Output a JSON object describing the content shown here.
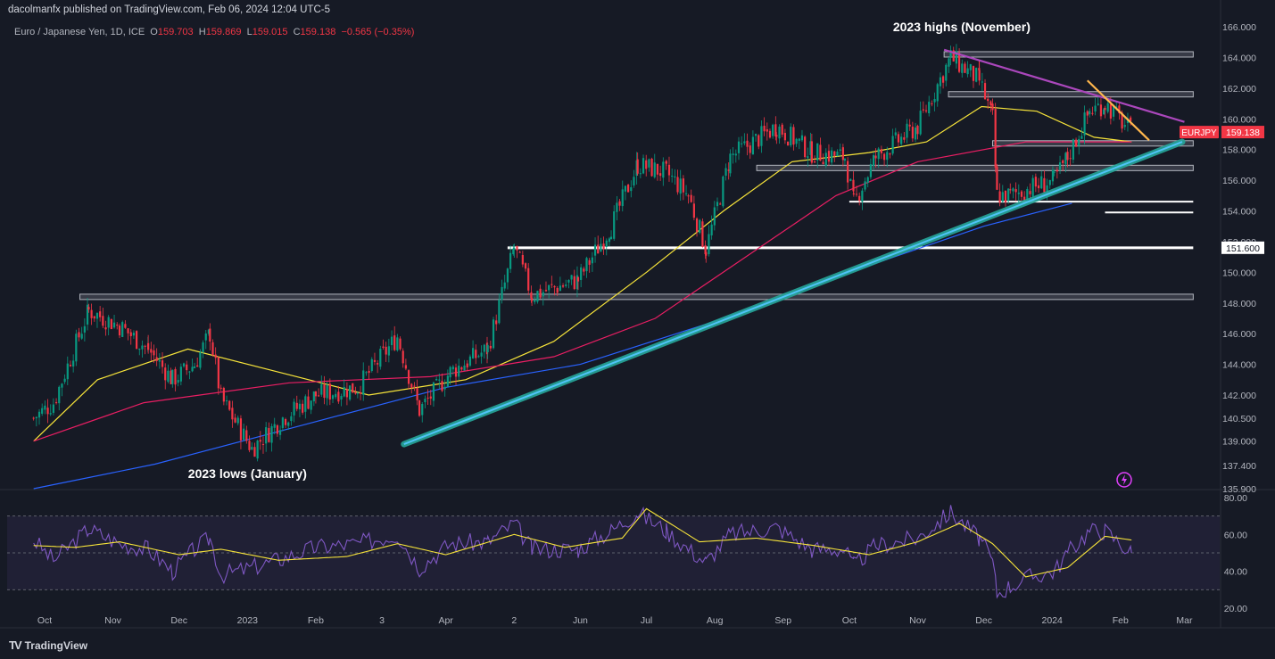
{
  "header": {
    "published_text": "dacolmanfx published on TradingView.com, Feb 06, 2024 12:04 UTC-5"
  },
  "legend": {
    "symbol_text": "Euro / Japanese Yen, 1D, ICE",
    "open_label": "O",
    "open": "159.703",
    "high_label": "H",
    "high": "159.869",
    "low_label": "L",
    "low": "159.015",
    "close_label": "C",
    "close": "159.138",
    "change": "−0.565 (−0.35%)"
  },
  "brand": {
    "logo": "TV",
    "name": "TradingView"
  },
  "colors": {
    "background": "#161a25",
    "up_candle": "#089981",
    "down_candle": "#f23645",
    "sma50": "#f7e43a",
    "sma100": "#e91e63",
    "sma200": "#2962ff",
    "rsi": "#7e57c2",
    "rsi_ma": "#f7e43a",
    "trendline_lower": "#26a69a",
    "trendline_upper": "#ab47bc",
    "trendline_short": "#ffb74d",
    "price_label": "#f23645"
  },
  "chart_data": {
    "type": "candlestick",
    "symbol": "EURJPY",
    "timeframe": "1D",
    "ylim": [
      135.9,
      166.0
    ],
    "y_ticks": [
      166.0,
      164.0,
      162.0,
      160.0,
      158.0,
      156.0,
      154.0,
      152.0,
      150.0,
      148.0,
      146.0,
      144.0,
      142.0,
      140.5,
      139.0,
      137.4,
      135.9
    ],
    "y_tick_labels": [
      "166.000",
      "164.000",
      "162.000",
      "160.000",
      "158.000",
      "156.000",
      "154.000",
      "152.000",
      "150.000",
      "148.000",
      "146.000",
      "144.000",
      "142.000",
      "140.500",
      "139.000",
      "137.400",
      "135.900"
    ],
    "x_tick_labels": [
      "Oct",
      "Nov",
      "Dec",
      "2023",
      "Feb",
      "3",
      "Apr",
      "2",
      "Jun",
      "Jul",
      "Aug",
      "Sep",
      "Oct",
      "Nov",
      "Dec",
      "2024",
      "Feb",
      "Mar"
    ],
    "x_tick_dates": [
      "2022-10-01",
      "2022-11-01",
      "2022-12-01",
      "2023-01-01",
      "2023-02-01",
      "2023-03-03",
      "2023-04-01",
      "2023-05-02",
      "2023-06-01",
      "2023-07-01",
      "2023-08-01",
      "2023-09-01",
      "2023-10-01",
      "2023-11-01",
      "2023-12-01",
      "2024-01-01",
      "2024-02-01",
      "2024-03-01"
    ],
    "price_path": [
      [
        "2022-09-26",
        140.5
      ],
      [
        "2022-10-05",
        141.5
      ],
      [
        "2022-10-21",
        147.5
      ],
      [
        "2022-11-04",
        146.5
      ],
      [
        "2022-11-17",
        145.0
      ],
      [
        "2022-11-28",
        143.0
      ],
      [
        "2022-12-08",
        144.0
      ],
      [
        "2022-12-15",
        146.0
      ],
      [
        "2022-12-20",
        141.8
      ],
      [
        "2023-01-03",
        138.5
      ],
      [
        "2023-01-17",
        140.5
      ],
      [
        "2023-02-01",
        142.0
      ],
      [
        "2023-02-20",
        142.5
      ],
      [
        "2023-03-10",
        145.8
      ],
      [
        "2023-03-20",
        141.0
      ],
      [
        "2023-04-03",
        143.5
      ],
      [
        "2023-04-20",
        145.0
      ],
      [
        "2023-05-02",
        151.6
      ],
      [
        "2023-05-10",
        148.5
      ],
      [
        "2023-05-31",
        149.5
      ],
      [
        "2023-06-15",
        153.0
      ],
      [
        "2023-06-27",
        157.0
      ],
      [
        "2023-07-10",
        156.5
      ],
      [
        "2023-07-20",
        155.0
      ],
      [
        "2023-07-28",
        151.5
      ],
      [
        "2023-08-08",
        157.5
      ],
      [
        "2023-08-29",
        159.5
      ],
      [
        "2023-09-14",
        157.8
      ],
      [
        "2023-09-29",
        157.5
      ],
      [
        "2023-10-03",
        154.5
      ],
      [
        "2023-10-13",
        157.5
      ],
      [
        "2023-11-01",
        159.5
      ],
      [
        "2023-11-16",
        164.0
      ],
      [
        "2023-11-29",
        162.5
      ],
      [
        "2023-12-05",
        160.0
      ],
      [
        "2023-12-07",
        155.0
      ],
      [
        "2023-12-13",
        155.0
      ],
      [
        "2023-12-22",
        155.5
      ],
      [
        "2024-01-02",
        156.0
      ],
      [
        "2024-01-08",
        157.5
      ],
      [
        "2024-01-18",
        160.5
      ],
      [
        "2024-01-25",
        161.0
      ],
      [
        "2024-02-06",
        159.138
      ]
    ],
    "lines": [
      {
        "name": "SMA 50",
        "color": "#f7e43a",
        "points": [
          [
            "2022-09-26",
            139.0
          ],
          [
            "2022-10-25",
            143.0
          ],
          [
            "2022-12-05",
            145.0
          ],
          [
            "2023-01-15",
            143.5
          ],
          [
            "2023-02-25",
            142.0
          ],
          [
            "2023-04-10",
            143.0
          ],
          [
            "2023-05-20",
            145.5
          ],
          [
            "2023-07-01",
            150.0
          ],
          [
            "2023-08-05",
            154.0
          ],
          [
            "2023-09-05",
            157.2
          ],
          [
            "2023-10-10",
            157.8
          ],
          [
            "2023-11-05",
            158.5
          ],
          [
            "2023-11-30",
            160.8
          ],
          [
            "2023-12-25",
            160.5
          ],
          [
            "2024-01-20",
            158.8
          ],
          [
            "2024-02-06",
            158.5
          ]
        ]
      },
      {
        "name": "SMA 100",
        "color": "#e91e63",
        "points": [
          [
            "2022-09-26",
            139.0
          ],
          [
            "2022-11-15",
            141.5
          ],
          [
            "2023-01-20",
            142.8
          ],
          [
            "2023-03-25",
            143.2
          ],
          [
            "2023-05-20",
            144.5
          ],
          [
            "2023-07-05",
            147.0
          ],
          [
            "2023-08-15",
            151.0
          ],
          [
            "2023-09-25",
            155.0
          ],
          [
            "2023-11-01",
            157.2
          ],
          [
            "2023-12-20",
            158.5
          ],
          [
            "2024-02-06",
            158.5
          ]
        ]
      },
      {
        "name": "SMA 200",
        "color": "#2962ff",
        "points": [
          [
            "2022-09-26",
            135.9
          ],
          [
            "2022-11-20",
            137.5
          ],
          [
            "2023-01-25",
            140.0
          ],
          [
            "2023-04-01",
            142.5
          ],
          [
            "2023-06-01",
            144.0
          ],
          [
            "2023-08-01",
            146.8
          ],
          [
            "2023-10-01",
            150.0
          ],
          [
            "2023-12-01",
            153.0
          ],
          [
            "2024-01-10",
            154.5
          ]
        ]
      }
    ],
    "trendlines": [
      {
        "type": "support",
        "color": "#26a69a",
        "points": [
          [
            "2023-03-13",
            138.8
          ],
          [
            "2024-02-29",
            158.5
          ]
        ]
      },
      {
        "type": "resistance",
        "color": "#ab47bc",
        "points": [
          [
            "2023-11-13",
            164.5
          ],
          [
            "2024-03-01",
            159.8
          ]
        ]
      },
      {
        "type": "resistance_short",
        "color": "#ffb74d",
        "points": [
          [
            "2024-01-17",
            162.5
          ],
          [
            "2024-02-14",
            158.6
          ]
        ]
      }
    ],
    "horizontal_levels": [
      {
        "price": 164.2,
        "start": "2023-11-13",
        "end": "2024-03-05",
        "style": "gray"
      },
      {
        "price": 161.6,
        "start": "2023-11-15",
        "end": "2024-03-05",
        "style": "gray"
      },
      {
        "price": 158.4,
        "start": "2023-12-05",
        "end": "2024-03-05",
        "style": "gray"
      },
      {
        "price": 156.8,
        "start": "2023-08-20",
        "end": "2024-03-05",
        "style": "gray"
      },
      {
        "price": 154.6,
        "start": "2023-10-01",
        "end": "2024-03-05",
        "style": "white"
      },
      {
        "price": 153.9,
        "start": "2024-01-25",
        "end": "2024-03-05",
        "style": "white"
      },
      {
        "price": 151.6,
        "start": "2023-04-29",
        "end": "2024-03-05",
        "style": "white",
        "label": "151.600"
      },
      {
        "price": 148.4,
        "start": "2022-10-17",
        "end": "2024-03-05",
        "style": "gray"
      }
    ],
    "annotations": [
      {
        "text": "2023 highs (November)",
        "date": "2023-11-21",
        "price": 165.7
      },
      {
        "text": "2023 lows (January)",
        "date": "2023-01-01",
        "price": 136.6
      }
    ],
    "last_price": {
      "symbol": "EURJPY",
      "value": "159.138",
      "price": 159.138
    },
    "rsi": {
      "ylim": [
        20,
        80
      ],
      "y_ticks": [
        80,
        60,
        40,
        20
      ],
      "y_tick_labels": [
        "80.00",
        "60.00",
        "40.00",
        "20.00"
      ],
      "bands": [
        30,
        50,
        70
      ],
      "rsi_points": [
        [
          "2022-09-26",
          57
        ],
        [
          "2022-10-05",
          46
        ],
        [
          "2022-10-21",
          63
        ],
        [
          "2022-11-04",
          55
        ],
        [
          "2022-11-17",
          52
        ],
        [
          "2022-11-28",
          40
        ],
        [
          "2022-12-08",
          52
        ],
        [
          "2022-12-15",
          58
        ],
        [
          "2022-12-20",
          38
        ],
        [
          "2023-01-03",
          42
        ],
        [
          "2023-01-17",
          47
        ],
        [
          "2023-02-01",
          53
        ],
        [
          "2023-02-20",
          55
        ],
        [
          "2023-03-10",
          60
        ],
        [
          "2023-03-20",
          42
        ],
        [
          "2023-04-03",
          55
        ],
        [
          "2023-04-20",
          56
        ],
        [
          "2023-05-02",
          66
        ],
        [
          "2023-05-10",
          52
        ],
        [
          "2023-05-31",
          52
        ],
        [
          "2023-06-15",
          62
        ],
        [
          "2023-06-27",
          72
        ],
        [
          "2023-07-10",
          62
        ],
        [
          "2023-07-20",
          52
        ],
        [
          "2023-07-28",
          45
        ],
        [
          "2023-08-08",
          60
        ],
        [
          "2023-08-29",
          64
        ],
        [
          "2023-09-14",
          52
        ],
        [
          "2023-09-29",
          52
        ],
        [
          "2023-10-03",
          43
        ],
        [
          "2023-10-13",
          54
        ],
        [
          "2023-11-01",
          58
        ],
        [
          "2023-11-16",
          72
        ],
        [
          "2023-11-29",
          58
        ],
        [
          "2023-12-05",
          45
        ],
        [
          "2023-12-07",
          28
        ],
        [
          "2023-12-13",
          32
        ],
        [
          "2023-12-22",
          37
        ],
        [
          "2024-01-02",
          40
        ],
        [
          "2024-01-08",
          50
        ],
        [
          "2024-01-18",
          62
        ],
        [
          "2024-01-25",
          62
        ],
        [
          "2024-02-06",
          50
        ]
      ],
      "ma_points": [
        [
          "2022-09-26",
          54
        ],
        [
          "2022-10-15",
          53
        ],
        [
          "2022-11-04",
          56
        ],
        [
          "2022-12-01",
          49
        ],
        [
          "2022-12-20",
          52
        ],
        [
          "2023-01-15",
          46
        ],
        [
          "2023-02-15",
          48
        ],
        [
          "2023-03-10",
          55
        ],
        [
          "2023-04-01",
          49
        ],
        [
          "2023-05-02",
          60
        ],
        [
          "2023-05-25",
          53
        ],
        [
          "2023-06-20",
          58
        ],
        [
          "2023-07-01",
          74
        ],
        [
          "2023-07-25",
          56
        ],
        [
          "2023-08-20",
          58
        ],
        [
          "2023-09-15",
          54
        ],
        [
          "2023-10-10",
          49
        ],
        [
          "2023-11-01",
          56
        ],
        [
          "2023-11-20",
          66
        ],
        [
          "2023-12-05",
          55
        ],
        [
          "2023-12-20",
          37
        ],
        [
          "2024-01-08",
          42
        ],
        [
          "2024-01-25",
          59
        ],
        [
          "2024-02-06",
          57
        ]
      ]
    }
  }
}
